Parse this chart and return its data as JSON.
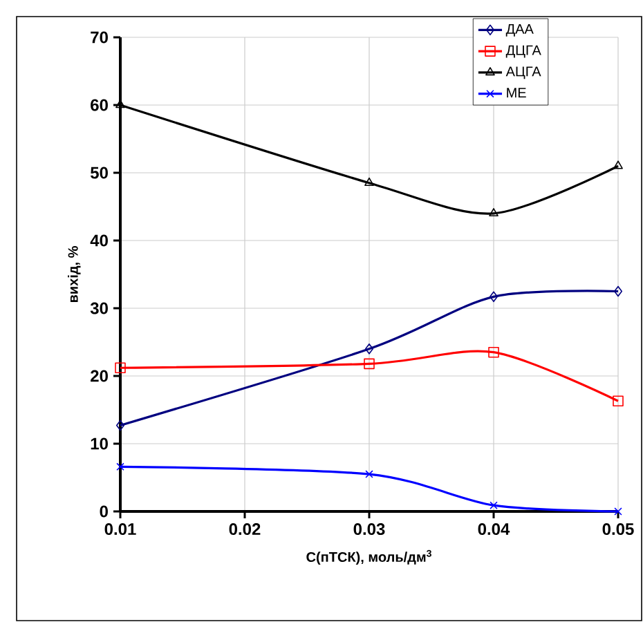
{
  "chart_data": {
    "type": "line",
    "xlabel": "C(пТСК), моль/дм$^{3}$",
    "ylabel": "вихід, %",
    "x": [
      0.01,
      0.03,
      0.04,
      0.05
    ],
    "series": [
      {
        "name": "ДАА",
        "color": "#000080",
        "marker": "diamond",
        "values": [
          12.7,
          24,
          31.7,
          32.5
        ]
      },
      {
        "name": "ДЦГА",
        "color": "#ff0000",
        "marker": "square",
        "values": [
          21.2,
          21.8,
          23.5,
          16.3
        ]
      },
      {
        "name": "АЦГА",
        "color": "#000000",
        "marker": "triangle",
        "values": [
          60,
          48.5,
          44,
          51
        ]
      },
      {
        "name": "МЕ",
        "color": "#0000ff",
        "marker": "cross",
        "values": [
          6.6,
          5.5,
          0.9,
          0
        ]
      }
    ],
    "xlim": [
      0.01,
      0.05
    ],
    "xticks": [
      {
        "value": 0.01,
        "label": "0.01"
      },
      {
        "value": 0.02,
        "label": "0.02"
      },
      {
        "value": 0.03,
        "label": "0.03"
      },
      {
        "value": 0.04,
        "label": "0.04"
      },
      {
        "value": 0.05,
        "label": "0.05"
      }
    ],
    "ylim": [
      0,
      70
    ],
    "yticks": [
      0,
      10,
      20,
      30,
      40,
      50,
      60,
      70
    ],
    "grid": true,
    "legend": "top right",
    "line_style": "solid"
  }
}
